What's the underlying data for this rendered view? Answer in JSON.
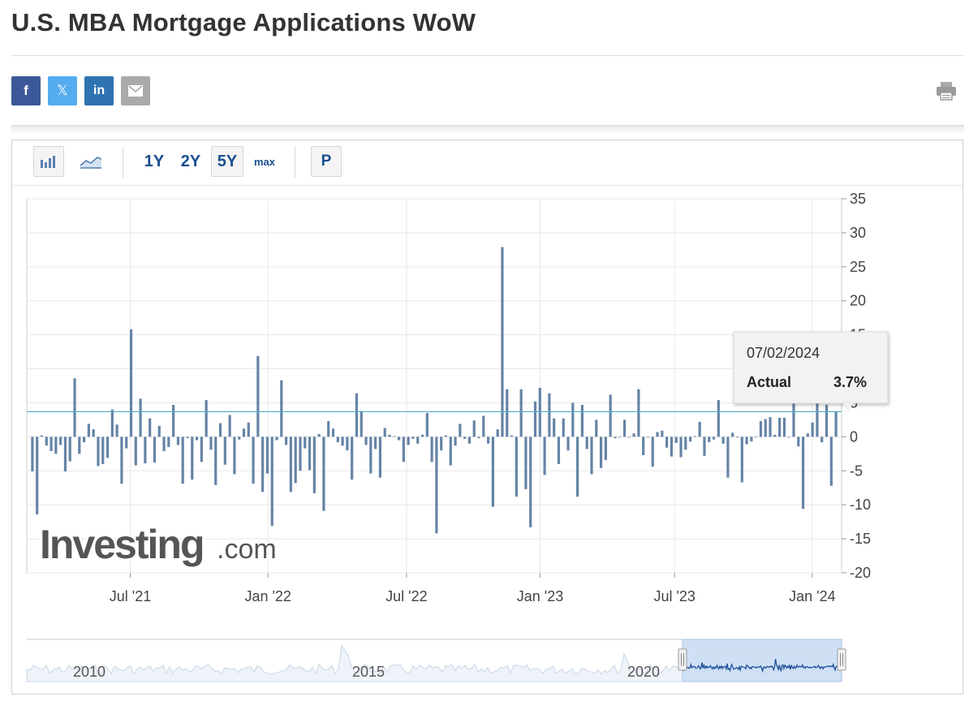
{
  "page": {
    "title": "U.S. MBA Mortgage Applications WoW"
  },
  "share": {
    "facebook": "f",
    "twitter": "𝕏",
    "linkedin": "in",
    "icons": [
      "facebook-icon",
      "twitter-x-icon",
      "linkedin-icon",
      "email-icon",
      "print-icon"
    ]
  },
  "toolbar": {
    "range_1y": "1Y",
    "range_2y": "2Y",
    "range_5y": "5Y",
    "range_max": "max",
    "p_button": "P",
    "active_range": "5Y",
    "icons": [
      "bar-chart-icon",
      "line-chart-icon"
    ]
  },
  "tooltip": {
    "date": "07/02/2024",
    "label": "Actual",
    "value": "3.7%"
  },
  "watermark": {
    "brand": "Investing",
    "suffix": ".com"
  },
  "colors": {
    "bar": "#6583a7",
    "reference_line": "#5aaec9",
    "text": "#333333",
    "accent": "#1a4f8f"
  },
  "chart_data": {
    "type": "bar",
    "title": "",
    "xlabel": "",
    "ylabel": "",
    "ylim": [
      -20,
      35
    ],
    "y_ticks": [
      35,
      30,
      25,
      20,
      15,
      10,
      5,
      0,
      -5,
      -10,
      -15,
      -20
    ],
    "x_ticks": [
      "Jul '21",
      "Jan '22",
      "Jul '22",
      "Jan '23",
      "Jul '23",
      "Jan '24"
    ],
    "reference_line": 3.7,
    "categories_note": "weekly observations, Feb 2021 - Feb 2024",
    "values": [
      -5.1,
      -11.4,
      0.2,
      -1.3,
      -2.1,
      -2.5,
      -1.2,
      -5.1,
      -3.6,
      8.6,
      -2.5,
      -0.8,
      1.9,
      1.1,
      -4.3,
      -4.0,
      -3.1,
      4.0,
      1.8,
      -6.9,
      -1.7,
      15.8,
      -4.2,
      5.6,
      -3.9,
      2.7,
      -3.8,
      1.6,
      -2.1,
      -1.5,
      4.7,
      -1.2,
      -6.9,
      -0.2,
      -6.3,
      -0.5,
      -3.7,
      5.4,
      -1.9,
      -7.1,
      2.0,
      -4.1,
      3.2,
      -5.5,
      -0.4,
      1.2,
      2.1,
      -6.9,
      11.9,
      -8.1,
      -5.4,
      -13.1,
      -0.5,
      8.3,
      -1.2,
      -8.1,
      -6.8,
      -5.0,
      -1.7,
      -4.9,
      -8.3,
      0.4,
      -10.9,
      2.3,
      1.2,
      -0.8,
      -1.3,
      -2.0,
      -6.3,
      6.4,
      3.8,
      -1.2,
      -5.4,
      -1.8,
      -6.0,
      1.3,
      0.3,
      0.1,
      -0.5,
      -3.7,
      -1.2,
      -0.3,
      -1.0,
      0.3,
      3.5,
      -3.7,
      -14.2,
      -2.0,
      0.2,
      -4.2,
      -1.3,
      1.9,
      -0.3,
      -1.0,
      2.4,
      -0.2,
      3.1,
      -1.0,
      -10.3,
      1.1,
      27.9,
      7.0,
      0.2,
      -8.8,
      7.0,
      -7.7,
      -13.3,
      5.2,
      7.2,
      -5.6,
      6.4,
      2.7,
      -4.0,
      2.7,
      -2.0,
      5.0,
      -8.8,
      4.7,
      -1.8,
      -5.5,
      2.5,
      -4.6,
      -3.4,
      6.2,
      -0.2,
      -0.1,
      2.5,
      -0.1,
      0.5,
      7.0,
      -2.7,
      -0.1,
      -4.4,
      0.7,
      0.9,
      -1.6,
      -2.9,
      -0.9,
      -3.0,
      -1.9,
      -0.7,
      0.1,
      2.2,
      -2.8,
      -0.8,
      -0.4,
      5.4,
      -1.0,
      -6.0,
      0.6,
      -0.1,
      -6.7,
      -1.1,
      -0.7,
      -0.1,
      2.3,
      2.6,
      2.9,
      0.3,
      2.8,
      2.8,
      -0.1,
      8.5,
      -1.4,
      -10.6,
      0.5,
      2.1,
      5.2,
      -0.8,
      4.7,
      -7.2,
      3.7
    ],
    "navigator": {
      "type": "area",
      "x_ticks": [
        "2010",
        "2015",
        "2020"
      ],
      "selection": [
        "Feb 2021",
        "Feb 2024"
      ]
    }
  }
}
